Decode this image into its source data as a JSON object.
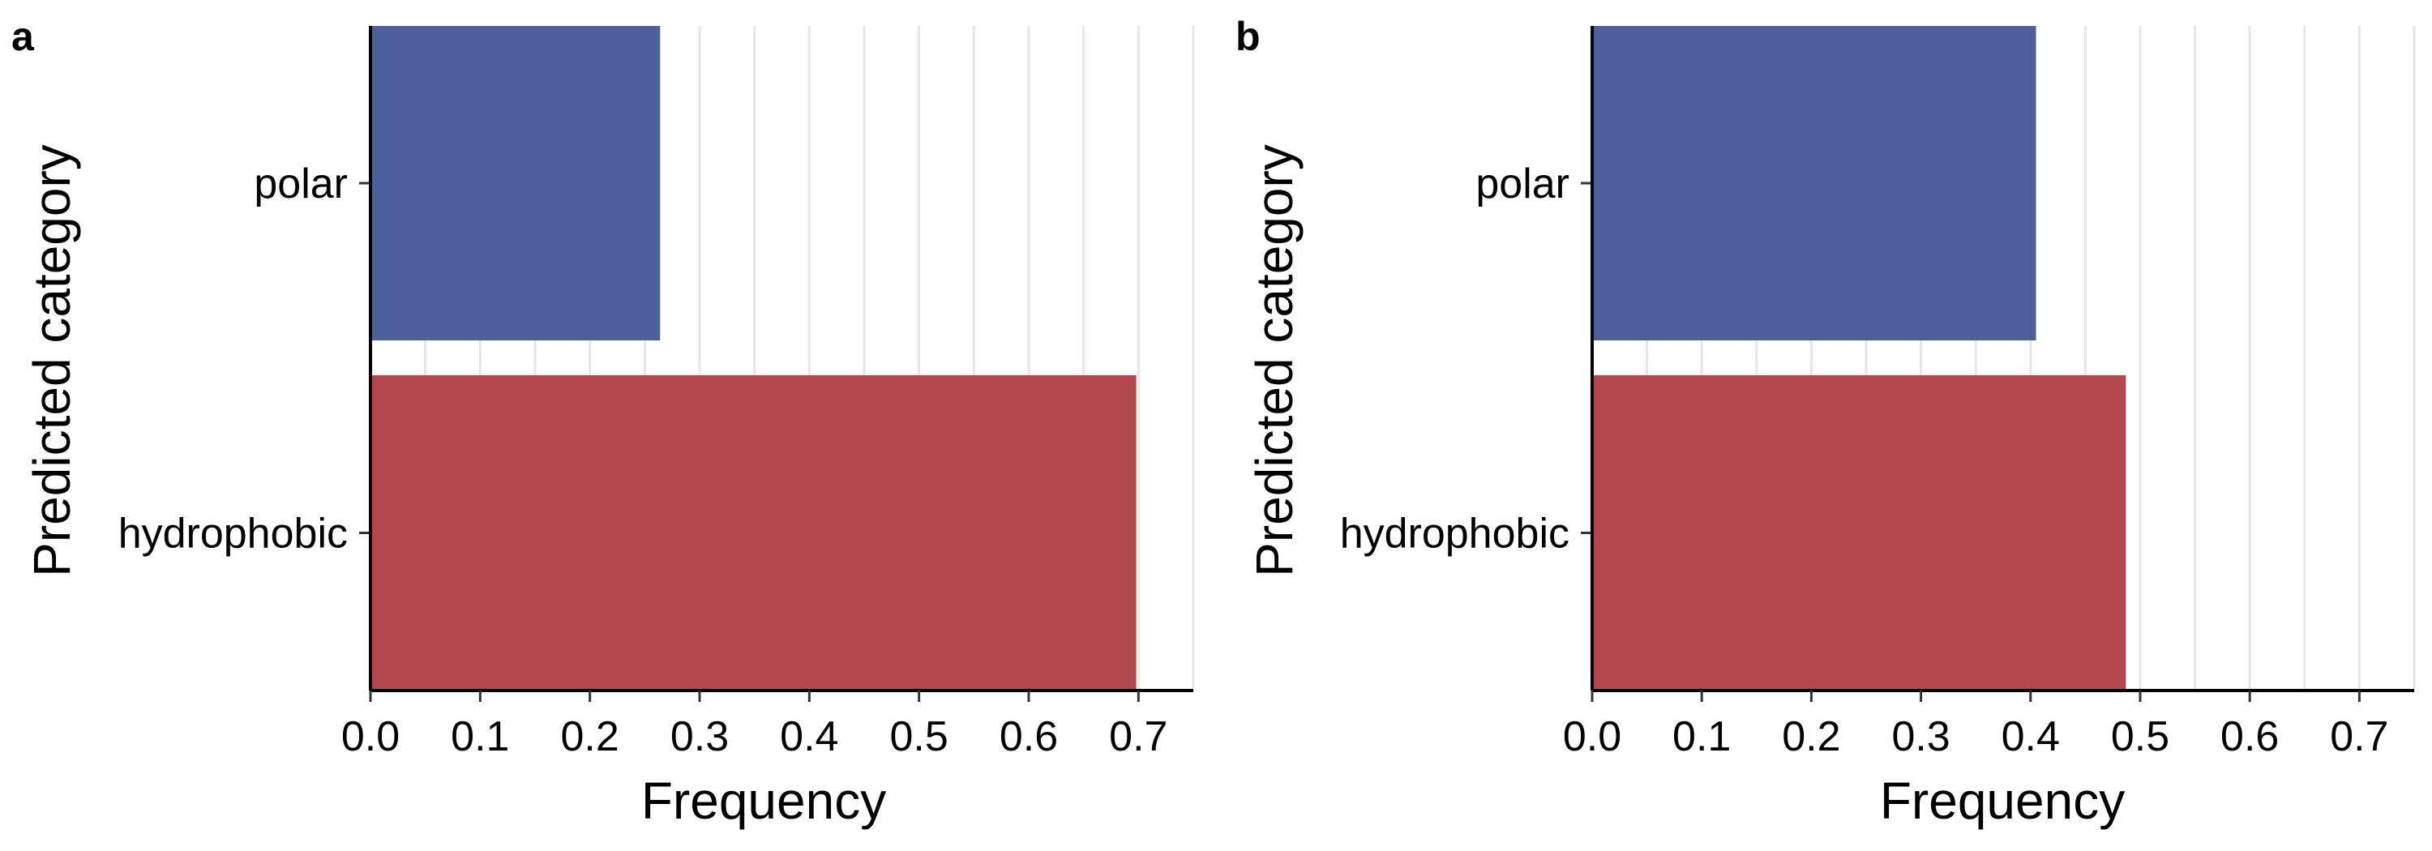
{
  "chart_data": [
    {
      "type": "bar",
      "orientation": "horizontal",
      "panel_label": "a",
      "categories": [
        "polar",
        "hydrophobic"
      ],
      "values": [
        0.264,
        0.698
      ],
      "bar_colors": [
        "#475b98",
        "#b24048"
      ],
      "xlabel": "Frequency",
      "ylabel": "Predicted category",
      "xlim": [
        0,
        0.75
      ],
      "xticks": [
        "0.0",
        "0.1",
        "0.2",
        "0.3",
        "0.4",
        "0.5",
        "0.6",
        "0.7"
      ],
      "grid": "vertical"
    },
    {
      "type": "bar",
      "orientation": "horizontal",
      "panel_label": "b",
      "categories": [
        "polar",
        "hydrophobic"
      ],
      "values": [
        0.405,
        0.487
      ],
      "bar_colors": [
        "#475b98",
        "#b24048"
      ],
      "xlabel": "Frequency",
      "ylabel": "Predicted category",
      "xlim": [
        0,
        0.75
      ],
      "xticks": [
        "0.0",
        "0.1",
        "0.2",
        "0.3",
        "0.4",
        "0.5",
        "0.6",
        "0.7"
      ],
      "grid": "vertical"
    }
  ]
}
